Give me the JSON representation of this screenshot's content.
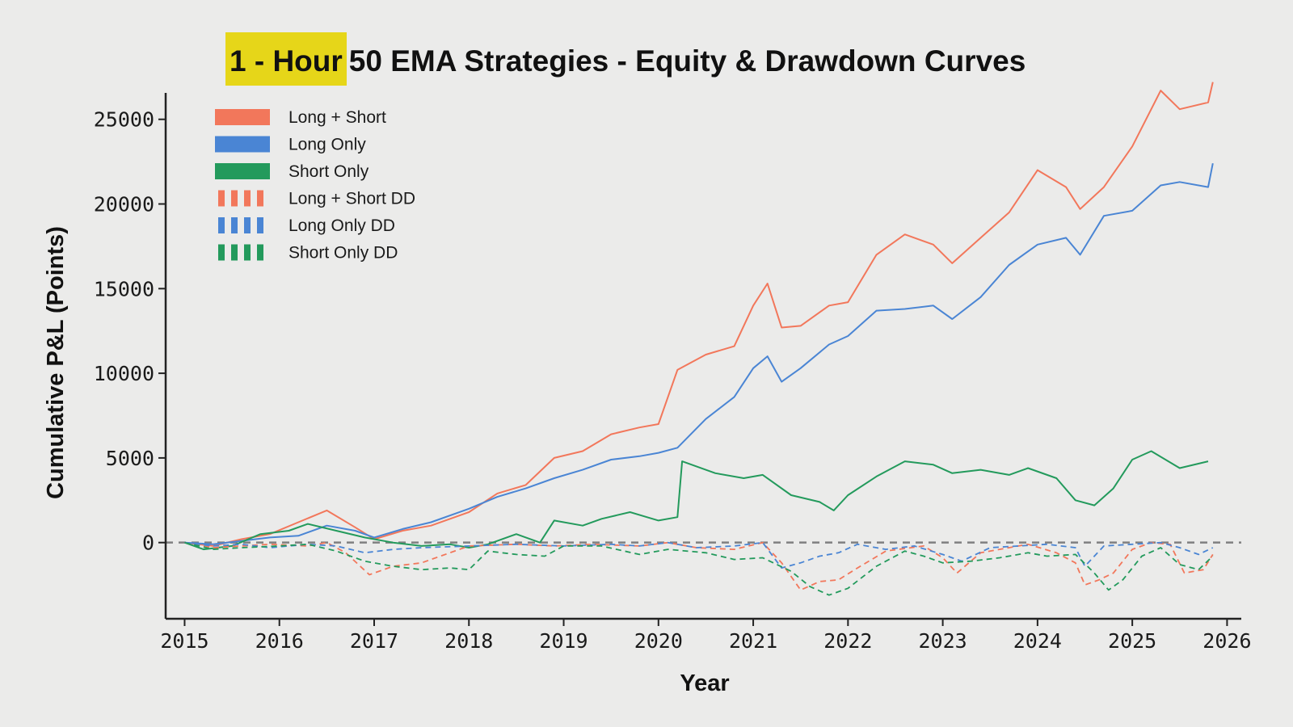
{
  "chart_data": {
    "type": "line",
    "title": "50 EMA Strategies - Equity & Drawdown Curves",
    "title_highlight": "1 - Hour",
    "xlabel": "Year",
    "ylabel": "Cumulative P&L (Points)",
    "xlim": [
      2014.8,
      2026.15
    ],
    "ylim": [
      -4500,
      26800
    ],
    "xticks": [
      "2015",
      "2016",
      "2017",
      "2018",
      "2019",
      "2020",
      "2021",
      "2022",
      "2023",
      "2024",
      "2025",
      "2026"
    ],
    "yticks": [
      "0",
      "5000",
      "10000",
      "15000",
      "20000",
      "25000"
    ],
    "grid": false,
    "legend_position": "top-left",
    "zero_line": true,
    "colors": {
      "long_short": "#f2775b",
      "long_only": "#4a85d4",
      "short_only": "#239a5c",
      "zero_line": "#808080",
      "highlight": "#e6d619"
    },
    "series": [
      {
        "name": "Long + Short",
        "style": "solid",
        "color": "#f2775b",
        "x": [
          2015.0,
          2015.3,
          2015.6,
          2015.9,
          2016.2,
          2016.5,
          2016.8,
          2017.0,
          2017.3,
          2017.6,
          2018.0,
          2018.3,
          2018.6,
          2018.9,
          2019.2,
          2019.5,
          2019.8,
          2020.0,
          2020.2,
          2020.5,
          2020.8,
          2021.0,
          2021.15,
          2021.3,
          2021.5,
          2021.8,
          2022.0,
          2022.3,
          2022.6,
          2022.9,
          2023.1,
          2023.4,
          2023.7,
          2024.0,
          2024.3,
          2024.45,
          2024.7,
          2025.0,
          2025.3,
          2025.5,
          2025.8,
          2025.85
        ],
        "values": [
          0,
          -200,
          200,
          500,
          1200,
          1900,
          900,
          200,
          700,
          1000,
          1800,
          2900,
          3400,
          5000,
          5400,
          6400,
          6800,
          7000,
          10200,
          11100,
          11600,
          14000,
          15300,
          12700,
          12800,
          14000,
          14200,
          17000,
          18200,
          17600,
          16500,
          18000,
          19500,
          22000,
          21000,
          19700,
          21000,
          23400,
          26700,
          25600,
          26000,
          27200
        ]
      },
      {
        "name": "Long Only",
        "style": "solid",
        "color": "#4a85d4",
        "x": [
          2015.0,
          2015.3,
          2015.6,
          2015.9,
          2016.2,
          2016.5,
          2016.8,
          2017.0,
          2017.3,
          2017.6,
          2018.0,
          2018.3,
          2018.6,
          2018.9,
          2019.2,
          2019.5,
          2019.8,
          2020.0,
          2020.2,
          2020.5,
          2020.8,
          2021.0,
          2021.15,
          2021.3,
          2021.5,
          2021.8,
          2022.0,
          2022.3,
          2022.6,
          2022.9,
          2023.1,
          2023.4,
          2023.7,
          2024.0,
          2024.3,
          2024.45,
          2024.7,
          2025.0,
          2025.3,
          2025.5,
          2025.8,
          2025.85
        ],
        "values": [
          0,
          -100,
          100,
          300,
          400,
          1000,
          700,
          300,
          800,
          1200,
          2000,
          2700,
          3200,
          3800,
          4300,
          4900,
          5100,
          5300,
          5600,
          7300,
          8600,
          10300,
          11000,
          9500,
          10300,
          11700,
          12200,
          13700,
          13800,
          14000,
          13200,
          14500,
          16400,
          17600,
          18000,
          17000,
          19300,
          19600,
          21100,
          21300,
          21000,
          22400
        ]
      },
      {
        "name": "Short Only",
        "style": "solid",
        "color": "#239a5c",
        "x": [
          2015.0,
          2015.2,
          2015.5,
          2015.8,
          2016.1,
          2016.3,
          2016.6,
          2016.9,
          2017.2,
          2017.5,
          2017.8,
          2018.0,
          2018.2,
          2018.5,
          2018.75,
          2018.9,
          2019.2,
          2019.4,
          2019.7,
          2020.0,
          2020.2,
          2020.25,
          2020.6,
          2020.9,
          2021.1,
          2021.4,
          2021.7,
          2021.85,
          2022.0,
          2022.3,
          2022.6,
          2022.9,
          2023.1,
          2023.4,
          2023.7,
          2023.9,
          2024.2,
          2024.4,
          2024.6,
          2024.8,
          2025.0,
          2025.2,
          2025.5,
          2025.8
        ],
        "values": [
          0,
          -400,
          -200,
          500,
          700,
          1100,
          700,
          300,
          0,
          -200,
          -100,
          -300,
          -100,
          500,
          0,
          1300,
          1000,
          1400,
          1800,
          1300,
          1500,
          4800,
          4100,
          3800,
          4000,
          2800,
          2400,
          1900,
          2800,
          3900,
          4800,
          4600,
          4100,
          4300,
          4000,
          4400,
          3800,
          2500,
          2200,
          3200,
          4900,
          5400,
          4400,
          4800
        ]
      },
      {
        "name": "Long + Short DD",
        "style": "dashed",
        "color": "#f2775b",
        "x": [
          2015.0,
          2015.3,
          2015.6,
          2015.9,
          2016.3,
          2016.5,
          2016.7,
          2016.95,
          2017.2,
          2017.5,
          2017.8,
          2018.0,
          2018.5,
          2018.9,
          2019.3,
          2019.8,
          2020.1,
          2020.4,
          2020.8,
          2021.1,
          2021.3,
          2021.5,
          2021.7,
          2021.9,
          2022.1,
          2022.4,
          2022.8,
          2023.0,
          2023.15,
          2023.4,
          2023.7,
          2023.9,
          2024.2,
          2024.4,
          2024.5,
          2024.65,
          2024.8,
          2025.0,
          2025.2,
          2025.4,
          2025.55,
          2025.75,
          2025.85
        ],
        "values": [
          0,
          -300,
          -200,
          -100,
          -200,
          0,
          -600,
          -1900,
          -1400,
          -1200,
          -600,
          -200,
          -100,
          -200,
          -100,
          -200,
          0,
          -300,
          -400,
          0,
          -1200,
          -2800,
          -2300,
          -2200,
          -1500,
          -500,
          -200,
          -900,
          -1800,
          -600,
          -300,
          -100,
          -600,
          -1200,
          -2500,
          -2200,
          -1800,
          -400,
          0,
          -100,
          -1800,
          -1600,
          -700
        ]
      },
      {
        "name": "Long Only DD",
        "style": "dashed",
        "color": "#4a85d4",
        "x": [
          2015.0,
          2015.3,
          2015.6,
          2015.9,
          2016.3,
          2016.6,
          2016.9,
          2017.2,
          2017.5,
          2018.0,
          2018.5,
          2019.0,
          2019.5,
          2019.8,
          2020.1,
          2020.4,
          2020.8,
          2021.1,
          2021.3,
          2021.5,
          2021.7,
          2021.9,
          2022.1,
          2022.4,
          2022.7,
          2023.0,
          2023.2,
          2023.5,
          2023.8,
          2024.1,
          2024.4,
          2024.5,
          2024.7,
          2025.0,
          2025.3,
          2025.5,
          2025.7,
          2025.85
        ],
        "values": [
          0,
          -200,
          -100,
          -300,
          -100,
          -200,
          -600,
          -400,
          -300,
          -200,
          -100,
          -200,
          -100,
          -200,
          0,
          -300,
          -200,
          0,
          -1500,
          -1200,
          -800,
          -600,
          -100,
          -400,
          -200,
          -700,
          -1100,
          -300,
          -200,
          -100,
          -300,
          -1400,
          -200,
          -100,
          0,
          -300,
          -700,
          -300
        ]
      },
      {
        "name": "Short Only DD",
        "style": "dashed",
        "color": "#239a5c",
        "x": [
          2015.0,
          2015.3,
          2015.6,
          2016.0,
          2016.3,
          2016.6,
          2016.9,
          2017.2,
          2017.5,
          2017.8,
          2018.0,
          2018.2,
          2018.5,
          2018.8,
          2019.0,
          2019.4,
          2019.8,
          2020.1,
          2020.5,
          2020.8,
          2021.1,
          2021.4,
          2021.6,
          2021.8,
          2022.0,
          2022.3,
          2022.6,
          2022.8,
          2023.0,
          2023.3,
          2023.6,
          2023.9,
          2024.1,
          2024.4,
          2024.6,
          2024.75,
          2024.9,
          2025.1,
          2025.3,
          2025.5,
          2025.7,
          2025.85
        ],
        "values": [
          0,
          -400,
          -300,
          -200,
          -100,
          -500,
          -1100,
          -1400,
          -1600,
          -1500,
          -1600,
          -500,
          -700,
          -800,
          -200,
          -200,
          -700,
          -400,
          -600,
          -1000,
          -900,
          -1700,
          -2600,
          -3100,
          -2700,
          -1400,
          -500,
          -800,
          -1200,
          -1100,
          -900,
          -600,
          -800,
          -700,
          -1800,
          -2800,
          -2200,
          -800,
          -300,
          -1300,
          -1600,
          -800
        ]
      }
    ]
  }
}
